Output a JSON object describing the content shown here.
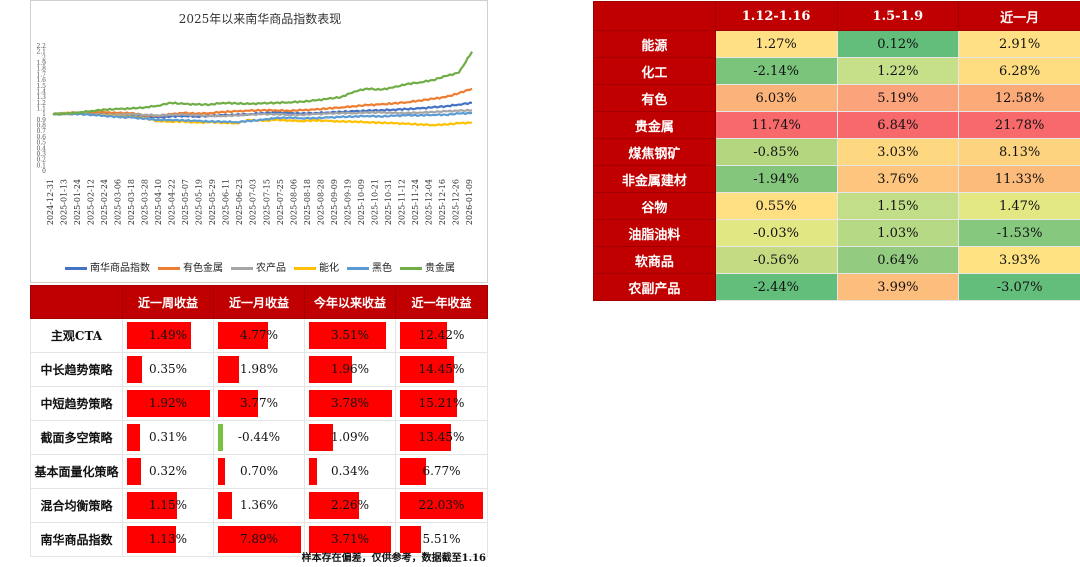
{
  "chart_data": {
    "type": "line",
    "title": "2025年以来南华商品指数表现",
    "y_ticks": [
      "2.2",
      "2.1",
      "2",
      "1.9",
      "1.8",
      "1.7",
      "1.6",
      "1.5",
      "1.4",
      "1.3",
      "1.2",
      "1.1",
      "1",
      "0.9",
      "0.8",
      "0.7",
      "0.6",
      "0.5",
      "0.4",
      "0.3",
      "0.2",
      "0.1",
      "0"
    ],
    "ylim": [
      0,
      2.2
    ],
    "x_ticks": [
      "2024-12-31",
      "2025-01-13",
      "2025-01-24",
      "2025-02-12",
      "2025-02-24",
      "2025-03-06",
      "2025-03-18",
      "2025-03-28",
      "2025-04-10",
      "2025-04-22",
      "2025-05-07",
      "2025-05-19",
      "2025-05-29",
      "2025-06-11",
      "2025-06-23",
      "2025-07-03",
      "2025-07-15",
      "2025-07-25",
      "2025-08-06",
      "2025-08-18",
      "2025-08-28",
      "2025-09-09",
      "2025-09-19",
      "2025-10-09",
      "2025-10-21",
      "2025-10-31",
      "2025-11-12",
      "2025-11-24",
      "2025-12-04",
      "2025-12-16",
      "2025-12-26",
      "2026-01-09"
    ],
    "series": [
      {
        "name": "南华商品指数",
        "color": "#4472c4",
        "values": [
          1.0,
          1.01,
          1.02,
          1.01,
          1.0,
          0.99,
          0.98,
          0.96,
          0.94,
          0.96,
          0.97,
          0.96,
          0.97,
          0.98,
          0.99,
          1.0,
          1.02,
          1.03,
          1.02,
          1.01,
          1.02,
          1.03,
          1.04,
          1.05,
          1.06,
          1.07,
          1.08,
          1.09,
          1.1,
          1.12,
          1.14,
          1.17,
          1.2
        ]
      },
      {
        "name": "有色金属",
        "color": "#ed7d31",
        "values": [
          1.0,
          1.02,
          1.03,
          1.04,
          1.03,
          1.02,
          1.02,
          0.98,
          0.97,
          1.0,
          1.02,
          1.01,
          1.02,
          1.04,
          1.05,
          1.06,
          1.07,
          1.07,
          1.06,
          1.07,
          1.08,
          1.1,
          1.12,
          1.14,
          1.16,
          1.17,
          1.19,
          1.21,
          1.24,
          1.27,
          1.3,
          1.37,
          1.45
        ]
      },
      {
        "name": "农产品",
        "color": "#a5a5a5",
        "values": [
          1.0,
          1.0,
          1.01,
          1.0,
          0.99,
          0.99,
          1.0,
          0.99,
          0.98,
          0.99,
          0.99,
          0.98,
          0.97,
          0.97,
          0.98,
          0.99,
          1.0,
          1.0,
          0.99,
          0.99,
          1.0,
          1.01,
          1.02,
          1.02,
          1.03,
          1.03,
          1.02,
          1.02,
          1.03,
          1.04,
          1.05,
          1.06,
          1.07
        ]
      },
      {
        "name": "能化",
        "color": "#ffc000",
        "values": [
          1.0,
          1.02,
          1.01,
          0.99,
          0.98,
          0.96,
          0.95,
          0.93,
          0.88,
          0.87,
          0.87,
          0.85,
          0.86,
          0.85,
          0.84,
          0.9,
          0.88,
          0.9,
          0.89,
          0.88,
          0.89,
          0.88,
          0.87,
          0.87,
          0.86,
          0.85,
          0.84,
          0.83,
          0.82,
          0.81,
          0.82,
          0.84,
          0.85
        ]
      },
      {
        "name": "黑色",
        "color": "#5b9bd5",
        "values": [
          1.0,
          1.01,
          1.0,
          0.99,
          0.97,
          0.95,
          0.94,
          0.92,
          0.9,
          0.9,
          0.89,
          0.88,
          0.87,
          0.87,
          0.86,
          0.88,
          0.9,
          0.93,
          0.94,
          0.93,
          0.93,
          0.94,
          0.95,
          0.96,
          0.97,
          0.96,
          0.97,
          0.98,
          0.98,
          0.99,
          0.99,
          1.01,
          1.02
        ]
      },
      {
        "name": "贵金属",
        "color": "#70ad47",
        "values": [
          1.0,
          1.01,
          1.03,
          1.06,
          1.08,
          1.09,
          1.1,
          1.12,
          1.15,
          1.2,
          1.18,
          1.17,
          1.17,
          1.2,
          1.19,
          1.18,
          1.19,
          1.2,
          1.21,
          1.22,
          1.24,
          1.27,
          1.3,
          1.4,
          1.45,
          1.43,
          1.47,
          1.53,
          1.56,
          1.6,
          1.67,
          1.73,
          2.1
        ]
      }
    ]
  },
  "sector_table": {
    "headers": [
      "",
      "1.12-1.16",
      "1.5-1.9",
      "近一月"
    ],
    "rows": [
      {
        "label": "能源",
        "cells": [
          {
            "v": "1.27%",
            "bg": "#ffe084"
          },
          {
            "v": "0.12%",
            "bg": "#63be7b"
          },
          {
            "v": "2.91%",
            "bg": "#ffe084"
          }
        ]
      },
      {
        "label": "化工",
        "cells": [
          {
            "v": "-2.14%",
            "bg": "#7ac47c"
          },
          {
            "v": "1.22%",
            "bg": "#c6e08a"
          },
          {
            "v": "6.28%",
            "bg": "#fedd81"
          }
        ]
      },
      {
        "label": "有色",
        "cells": [
          {
            "v": "6.03%",
            "bg": "#fcb37a"
          },
          {
            "v": "5.19%",
            "bg": "#fba37a"
          },
          {
            "v": "12.58%",
            "bg": "#fbaa78"
          }
        ]
      },
      {
        "label": "贵金属",
        "cells": [
          {
            "v": "11.74%",
            "bg": "#f8696b"
          },
          {
            "v": "6.84%",
            "bg": "#f8696b"
          },
          {
            "v": "21.78%",
            "bg": "#f8696b"
          }
        ]
      },
      {
        "label": "煤焦钢矿",
        "cells": [
          {
            "v": "-0.85%",
            "bg": "#b4d67f"
          },
          {
            "v": "3.03%",
            "bg": "#fed880"
          },
          {
            "v": "8.13%",
            "bg": "#fed37f"
          }
        ]
      },
      {
        "label": "非金属建材",
        "cells": [
          {
            "v": "-1.94%",
            "bg": "#84c77c"
          },
          {
            "v": "3.76%",
            "bg": "#fdc57d"
          },
          {
            "v": "11.33%",
            "bg": "#fcbb7b"
          }
        ]
      },
      {
        "label": "谷物",
        "cells": [
          {
            "v": "0.55%",
            "bg": "#fedf82"
          },
          {
            "v": "1.15%",
            "bg": "#c3de88"
          },
          {
            "v": "1.47%",
            "bg": "#e3e883"
          }
        ]
      },
      {
        "label": "油脂油料",
        "cells": [
          {
            "v": "-0.03%",
            "bg": "#e1e783"
          },
          {
            "v": "1.03%",
            "bg": "#b5d985"
          },
          {
            "v": "-1.53%",
            "bg": "#86c97e"
          }
        ]
      },
      {
        "label": "软商品",
        "cells": [
          {
            "v": "-0.56%",
            "bg": "#c4db81"
          },
          {
            "v": "0.64%",
            "bg": "#93cc80"
          },
          {
            "v": "3.93%",
            "bg": "#ffe383"
          }
        ]
      },
      {
        "label": "农副产品",
        "cells": [
          {
            "v": "-2.44%",
            "bg": "#63be7b"
          },
          {
            "v": "3.99%",
            "bg": "#fdbd7c"
          },
          {
            "v": "-3.07%",
            "bg": "#63be7b"
          }
        ]
      }
    ]
  },
  "strategy_table": {
    "headers": [
      "",
      "近一周收益",
      "近一月收益",
      "今年以来收益",
      "近一年收益"
    ],
    "rows": [
      {
        "label": "主观CTA",
        "values": [
          "1.49%",
          "4.77%",
          "3.51%",
          "12.42%"
        ],
        "nums": [
          1.49,
          4.77,
          3.51,
          12.42
        ]
      },
      {
        "label": "中长趋势策略",
        "values": [
          "0.35%",
          "1.98%",
          "1.96%",
          "14.45%"
        ],
        "nums": [
          0.35,
          1.98,
          1.96,
          14.45
        ]
      },
      {
        "label": "中短趋势策略",
        "values": [
          "1.92%",
          "3.77%",
          "3.78%",
          "15.21%"
        ],
        "nums": [
          1.92,
          3.77,
          3.78,
          15.21
        ]
      },
      {
        "label": "截面多空策略",
        "values": [
          "0.31%",
          "-0.44%",
          "1.09%",
          "13.45%"
        ],
        "nums": [
          0.31,
          -0.44,
          1.09,
          13.45
        ]
      },
      {
        "label": "基本面量化策略",
        "values": [
          "0.32%",
          "0.70%",
          "0.34%",
          "6.77%"
        ],
        "nums": [
          0.32,
          0.7,
          0.34,
          6.77
        ]
      },
      {
        "label": "混合均衡策略",
        "values": [
          "1.15%",
          "1.36%",
          "2.26%",
          "22.03%"
        ],
        "nums": [
          1.15,
          1.36,
          2.26,
          22.03
        ]
      },
      {
        "label": "南华商品指数",
        "values": [
          "1.13%",
          "7.89%",
          "3.71%",
          "5.51%"
        ],
        "nums": [
          1.13,
          7.89,
          3.71,
          5.51
        ]
      }
    ],
    "bar_max": [
      1.92,
      7.89,
      3.78,
      22.03
    ]
  },
  "footnote": "样本存在偏差，仅供参考，数据截至1.16"
}
